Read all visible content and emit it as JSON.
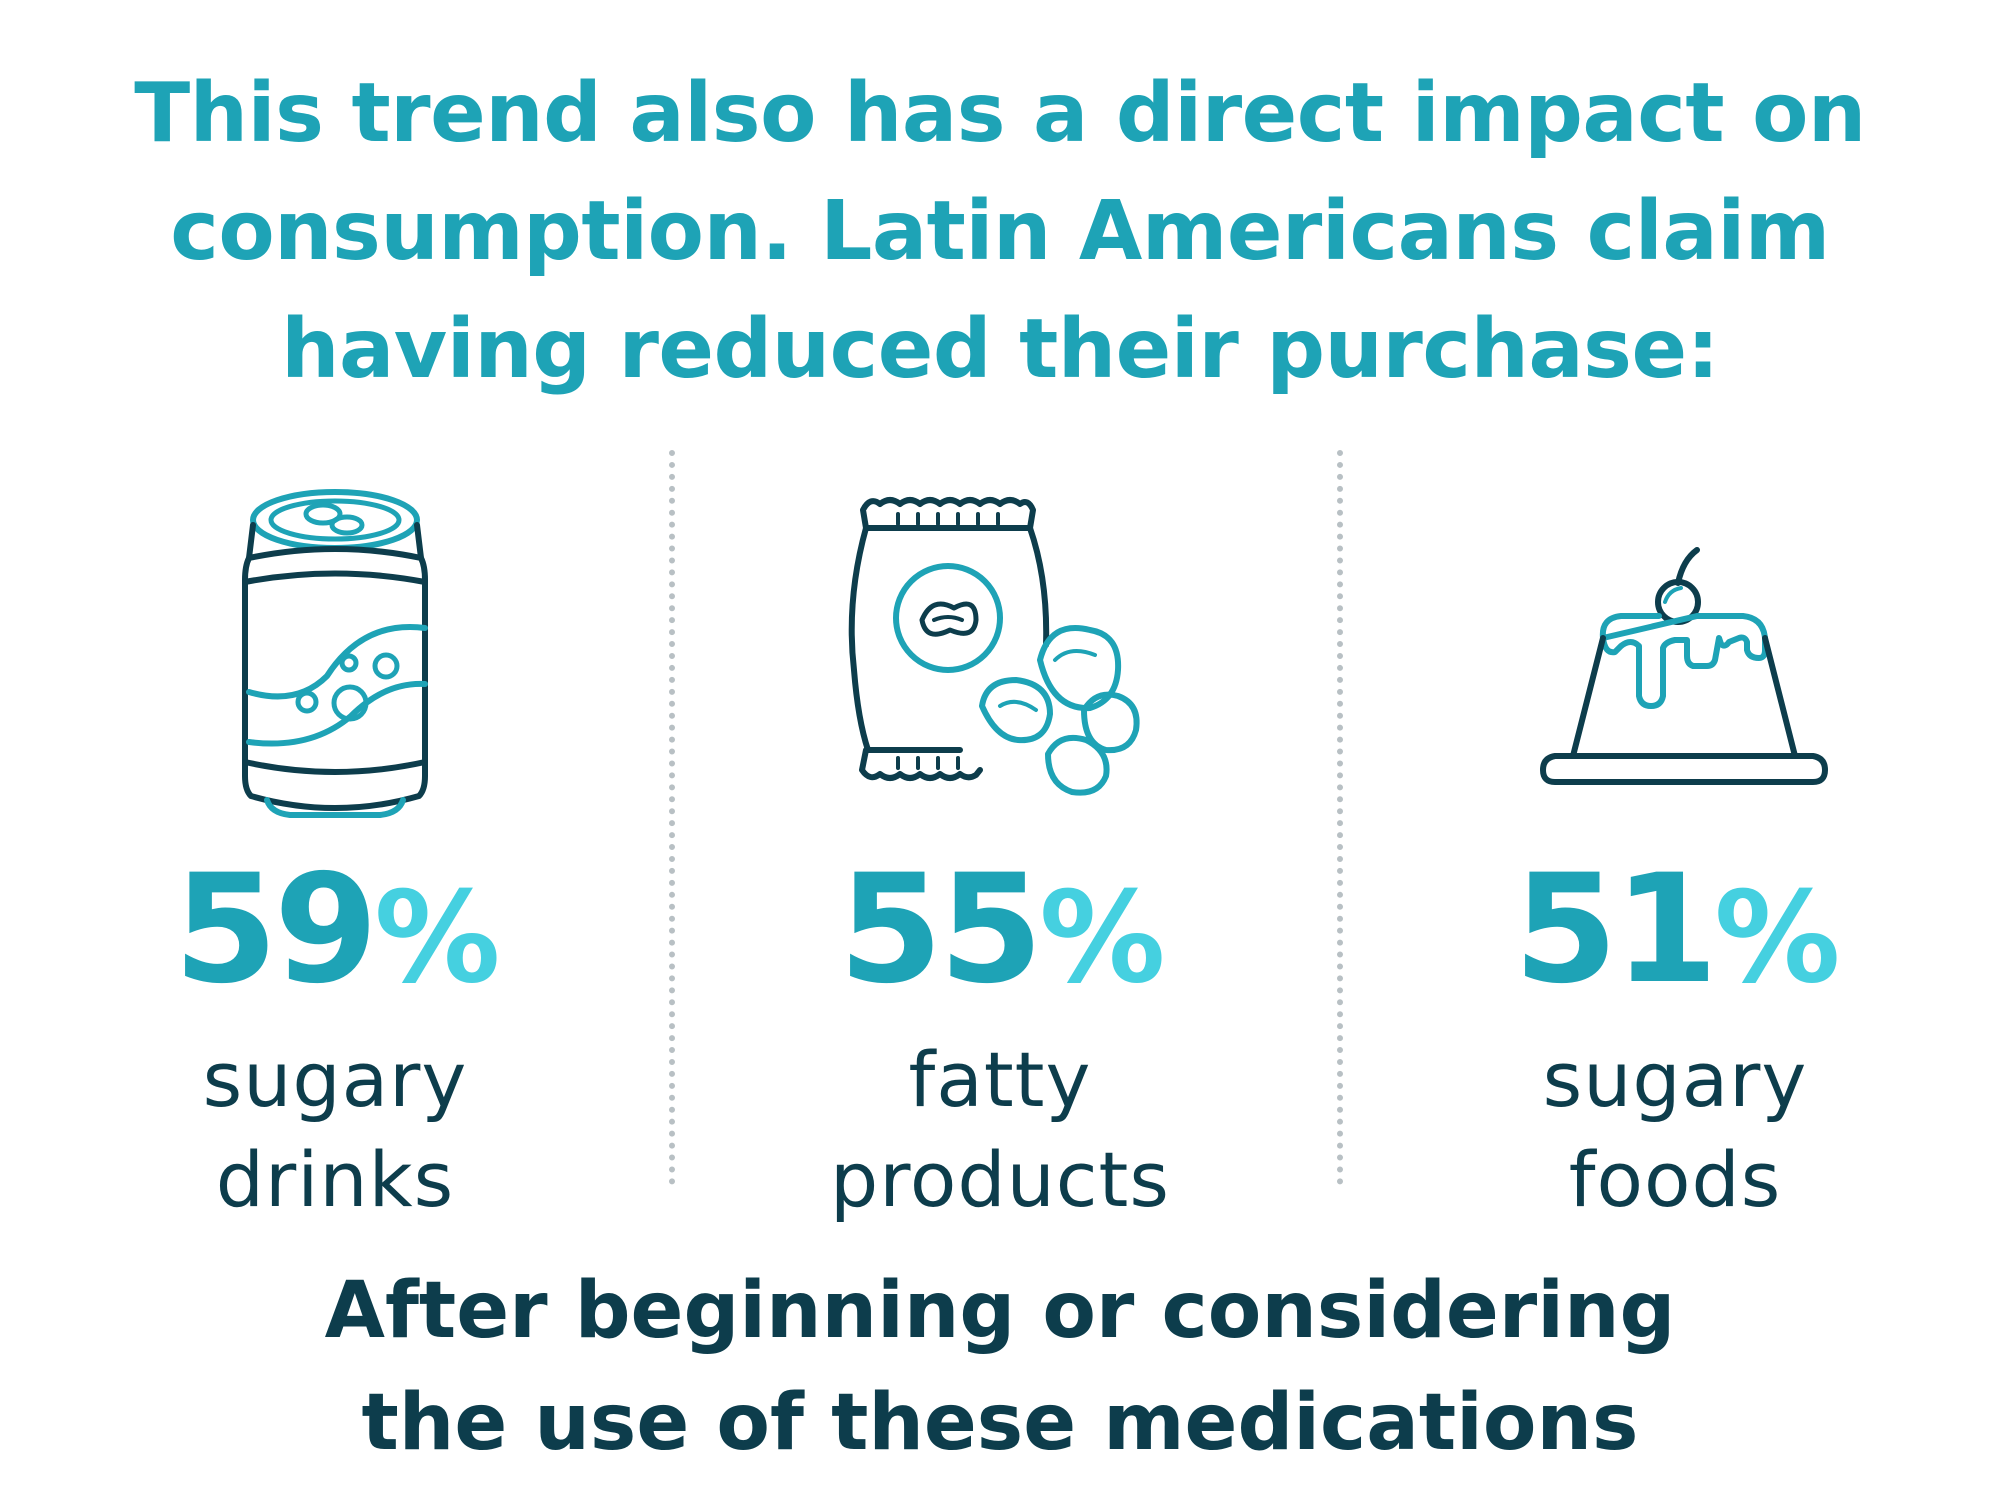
{
  "headline": {
    "line1": "This trend also has a direct impact on",
    "line2": "consumption. Latin Americans claim",
    "line3": "having reduced their purchase:"
  },
  "stats": [
    {
      "number": "59",
      "sign": "%",
      "percent": 59,
      "label_line1": "sugary",
      "label_line2": "drinks",
      "icon": "soda-can-icon"
    },
    {
      "number": "55",
      "sign": "%",
      "percent": 55,
      "label_line1": "fatty",
      "label_line2": "products",
      "icon": "chips-bag-icon"
    },
    {
      "number": "51",
      "sign": "%",
      "percent": 51,
      "label_line1": "sugary",
      "label_line2": "foods",
      "icon": "pudding-icon"
    }
  ],
  "footnote": {
    "line1": "After beginning or considering",
    "line2": "the use of these medications"
  },
  "colors": {
    "teal": "#1ea3b6",
    "light_teal": "#45d0e0",
    "dark_navy": "#0d3d4c",
    "divider_gray": "#b8c0c4",
    "background": "#ffffff"
  }
}
